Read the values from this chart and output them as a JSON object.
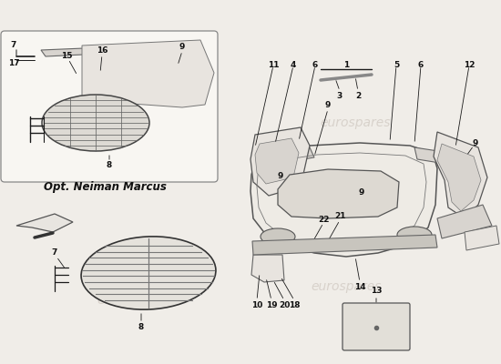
{
  "background_color": "#f0ede8",
  "watermark_text": "eurospares",
  "watermark_color": "#c8c0b8",
  "watermark_alpha": 0.6,
  "opt_label": "Opt. Neiman Marcus",
  "opt_label_fontsize": 8.5,
  "line_color": "#1a1a1a",
  "text_color": "#111111",
  "fontsize_label": 6.5,
  "box_edge": "#888888",
  "part_color_light": "#e8e4df",
  "part_color_mid": "#d8d4cf",
  "part_color_dark": "#c8c4bf"
}
